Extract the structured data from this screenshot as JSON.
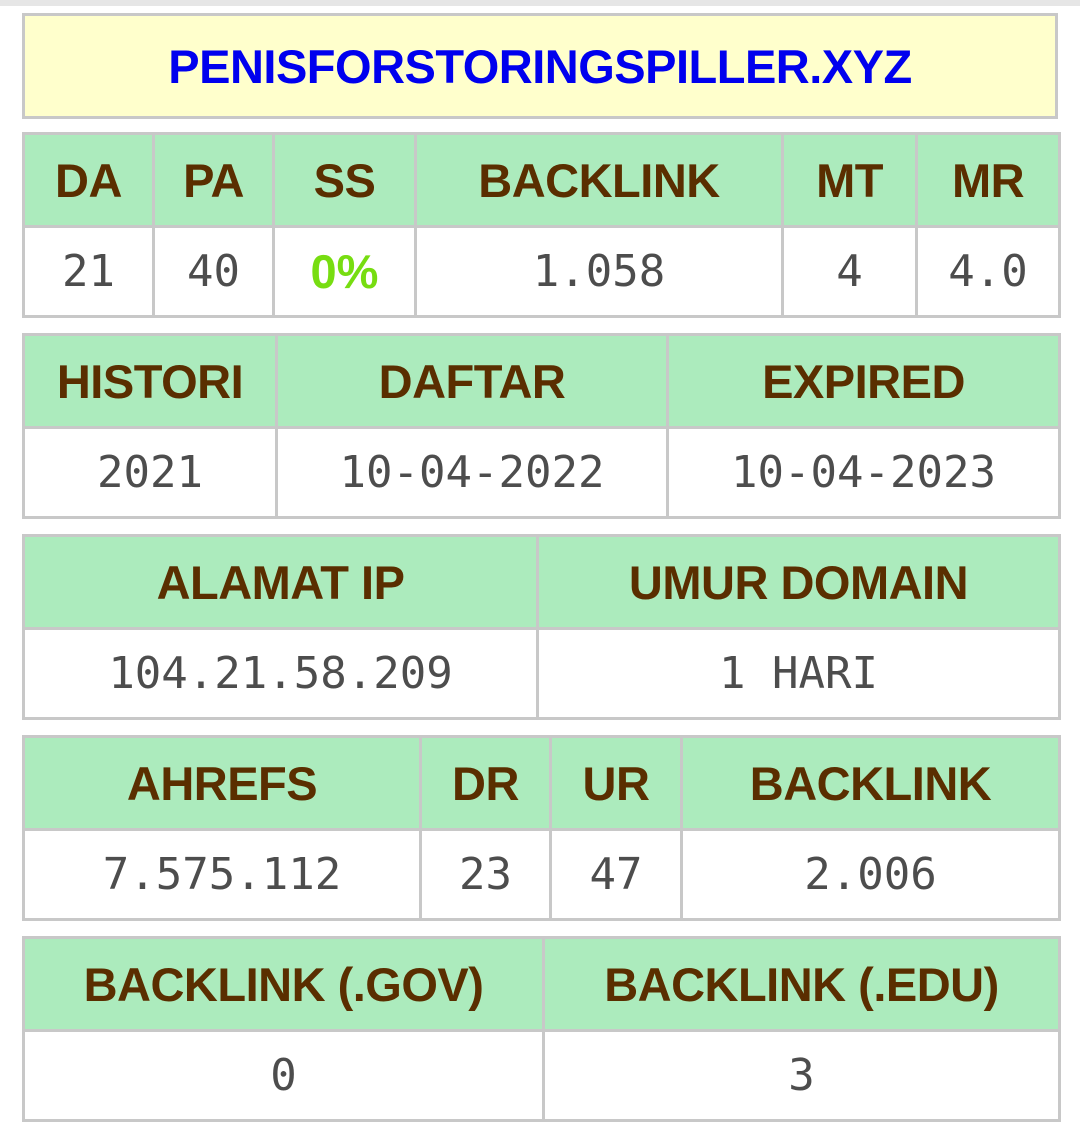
{
  "domain": {
    "name": "PENISFORSTORINGSPILLER.XYZ"
  },
  "colors": {
    "header_bg": "#acebbd",
    "header_text": "#5a2e00",
    "title_bg": "#ffffcc",
    "title_link": "#0000ee",
    "value_text": "#4d4d4d",
    "ss_accent": "#77dd11",
    "border": "#c8c8c8"
  },
  "moz": {
    "headers": {
      "da": "DA",
      "pa": "PA",
      "ss": "SS",
      "backlink": "BACKLINK",
      "mt": "MT",
      "mr": "MR"
    },
    "values": {
      "da": "21",
      "pa": "40",
      "ss": "0%",
      "backlink": "1.058",
      "mt": "4",
      "mr": "4.0"
    }
  },
  "dates": {
    "headers": {
      "histori": "HISTORI",
      "daftar": "DAFTAR",
      "expired": "EXPIRED"
    },
    "values": {
      "histori": "2021",
      "daftar": "10-04-2022",
      "expired": "10-04-2023"
    }
  },
  "network": {
    "headers": {
      "ip": "ALAMAT IP",
      "age": "UMUR DOMAIN"
    },
    "values": {
      "ip": "104.21.58.209",
      "age": "1 HARI"
    }
  },
  "ahrefs": {
    "headers": {
      "rank": "AHREFS",
      "dr": "DR",
      "ur": "UR",
      "backlink": "BACKLINK"
    },
    "values": {
      "rank": "7.575.112",
      "dr": "23",
      "ur": "47",
      "backlink": "2.006"
    }
  },
  "special_backlinks": {
    "headers": {
      "gov": "BACKLINK (.GOV)",
      "edu": "BACKLINK (.EDU)"
    },
    "values": {
      "gov": "0",
      "edu": "3"
    }
  }
}
